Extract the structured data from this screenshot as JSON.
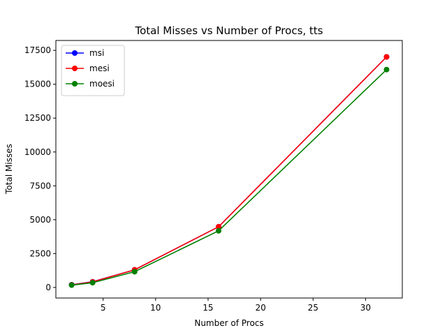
{
  "chart_data": {
    "type": "line",
    "title": "Total Misses vs Number of Procs, tts",
    "xlabel": "Number of Procs",
    "ylabel": "Total Misses",
    "xlim": [
      0.5,
      33.5
    ],
    "ylim": [
      -780,
      18230
    ],
    "xticks": [
      5,
      10,
      15,
      20,
      25,
      30
    ],
    "yticks": [
      0,
      2500,
      5000,
      7500,
      10000,
      12500,
      15000,
      17500
    ],
    "grid": false,
    "legend_position": "upper-left",
    "x": [
      2,
      4,
      8,
      16,
      32
    ],
    "series": [
      {
        "name": "msi",
        "color": "#0000ff",
        "values": [
          200,
          420,
          1300,
          4480,
          17020
        ]
      },
      {
        "name": "mesi",
        "color": "#ff0000",
        "values": [
          190,
          410,
          1300,
          4480,
          17020
        ]
      },
      {
        "name": "moesi",
        "color": "#008000",
        "values": [
          170,
          350,
          1160,
          4180,
          16080
        ]
      }
    ]
  }
}
